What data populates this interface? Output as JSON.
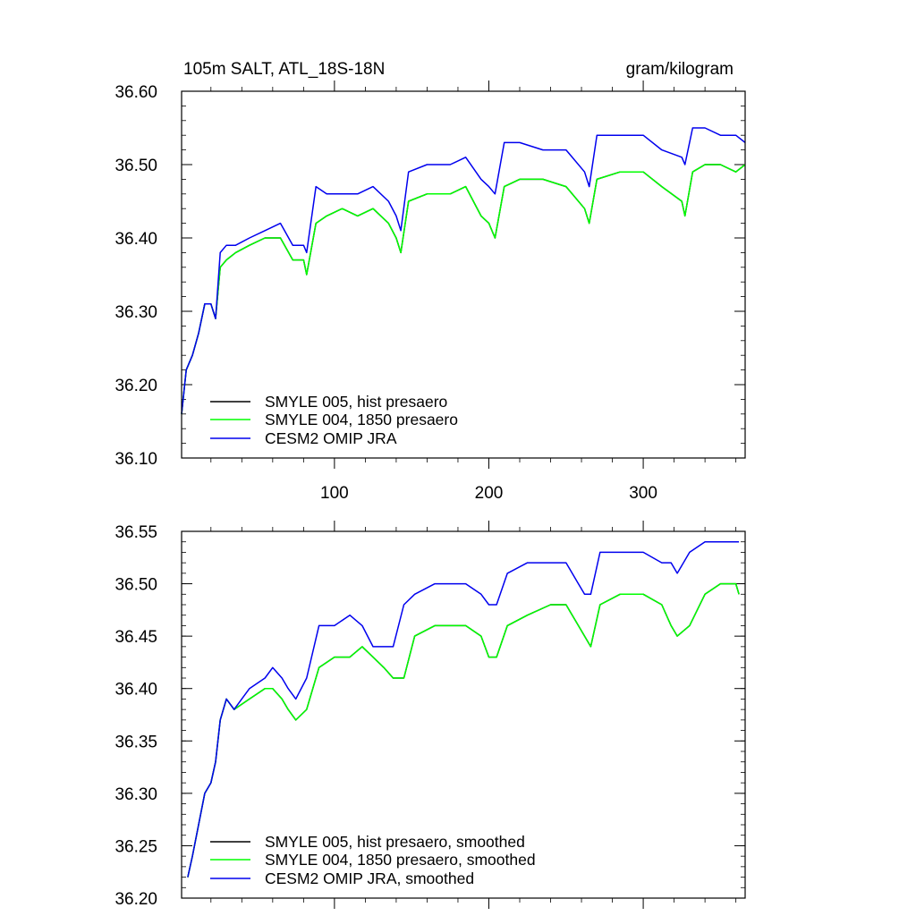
{
  "chart_data": [
    {
      "type": "line",
      "title": "105m SALT, ATL_18S-18N",
      "units": "gram/kilogram",
      "xlabel": "",
      "ylabel": "",
      "xlim": [
        1,
        366
      ],
      "ylim": [
        36.1,
        36.6
      ],
      "x_ticks": [
        100,
        200,
        300
      ],
      "x_tick_labels": [
        "100",
        "200",
        "300"
      ],
      "y_ticks": [
        36.1,
        36.2,
        36.3,
        36.4,
        36.5,
        36.6
      ],
      "y_tick_labels": [
        "36.10",
        "36.20",
        "36.30",
        "36.40",
        "36.50",
        "36.60"
      ],
      "legend_position": "bottom-left",
      "series": [
        {
          "name": "SMYLE 005, hist presaero",
          "color": "#000000",
          "x": [
            1,
            4,
            8,
            12,
            16,
            20,
            23,
            26,
            30,
            36,
            45,
            55,
            65,
            73,
            80,
            82,
            88,
            95,
            105,
            115,
            125,
            135,
            140,
            143,
            148,
            160,
            175,
            185,
            195,
            200,
            204,
            210,
            220,
            235,
            250,
            262,
            265,
            270,
            285,
            300,
            312,
            325,
            327,
            332,
            340,
            350,
            360,
            366
          ],
          "values": [
            36.16,
            36.22,
            36.24,
            36.27,
            36.31,
            36.31,
            36.29,
            36.36,
            36.37,
            36.38,
            36.39,
            36.4,
            36.4,
            36.37,
            36.37,
            36.35,
            36.42,
            36.43,
            36.44,
            36.43,
            36.44,
            36.42,
            36.4,
            36.38,
            36.45,
            36.46,
            36.46,
            36.47,
            36.43,
            36.42,
            36.4,
            36.47,
            36.48,
            36.48,
            36.47,
            36.44,
            36.42,
            36.48,
            36.49,
            36.49,
            36.47,
            36.45,
            36.43,
            36.49,
            36.5,
            36.5,
            36.49,
            36.5
          ]
        },
        {
          "name": "SMYLE 004, 1850 presaero",
          "color": "#00ff00",
          "x": [
            1,
            4,
            8,
            12,
            16,
            20,
            23,
            26,
            30,
            36,
            45,
            55,
            65,
            73,
            80,
            82,
            88,
            95,
            105,
            115,
            125,
            135,
            140,
            143,
            148,
            160,
            175,
            185,
            195,
            200,
            204,
            210,
            220,
            235,
            250,
            262,
            265,
            270,
            285,
            300,
            312,
            325,
            327,
            332,
            340,
            350,
            360,
            366
          ],
          "values": [
            36.16,
            36.22,
            36.24,
            36.27,
            36.31,
            36.31,
            36.29,
            36.36,
            36.37,
            36.38,
            36.39,
            36.4,
            36.4,
            36.37,
            36.37,
            36.35,
            36.42,
            36.43,
            36.44,
            36.43,
            36.44,
            36.42,
            36.4,
            36.38,
            36.45,
            36.46,
            36.46,
            36.47,
            36.43,
            36.42,
            36.4,
            36.47,
            36.48,
            36.48,
            36.47,
            36.44,
            36.42,
            36.48,
            36.49,
            36.49,
            36.47,
            36.45,
            36.43,
            36.49,
            36.5,
            36.5,
            36.49,
            36.5
          ]
        },
        {
          "name": "CESM2 OMIP JRA",
          "color": "#0000ee",
          "x": [
            1,
            4,
            8,
            12,
            16,
            20,
            23,
            26,
            30,
            36,
            45,
            55,
            65,
            73,
            80,
            82,
            88,
            95,
            105,
            115,
            125,
            135,
            140,
            143,
            148,
            160,
            175,
            185,
            195,
            200,
            204,
            210,
            220,
            235,
            250,
            262,
            265,
            270,
            285,
            300,
            312,
            325,
            327,
            332,
            340,
            350,
            360,
            366
          ],
          "values": [
            36.16,
            36.22,
            36.24,
            36.27,
            36.31,
            36.31,
            36.29,
            36.38,
            36.39,
            36.39,
            36.4,
            36.41,
            36.42,
            36.39,
            36.39,
            36.38,
            36.47,
            36.46,
            36.46,
            36.46,
            36.47,
            36.45,
            36.43,
            36.41,
            36.49,
            36.5,
            36.5,
            36.51,
            36.48,
            36.47,
            36.46,
            36.53,
            36.53,
            36.52,
            36.52,
            36.49,
            36.47,
            36.54,
            36.54,
            36.54,
            36.52,
            36.51,
            36.5,
            36.55,
            36.55,
            36.54,
            36.54,
            36.53
          ]
        }
      ]
    },
    {
      "type": "line",
      "title": "",
      "xlabel": "",
      "ylabel": "",
      "xlim": [
        1,
        366
      ],
      "ylim": [
        36.2,
        36.55
      ],
      "x_ticks": [
        100,
        200,
        300
      ],
      "y_ticks": [
        36.2,
        36.25,
        36.3,
        36.35,
        36.4,
        36.45,
        36.5,
        36.55
      ],
      "y_tick_labels": [
        "36.20",
        "36.25",
        "36.30",
        "36.35",
        "36.40",
        "36.45",
        "36.50",
        "36.55"
      ],
      "legend_position": "bottom-left",
      "series": [
        {
          "name": "SMYLE 005, hist presaero, smoothed",
          "color": "#000000",
          "x": [
            5,
            8,
            12,
            16,
            20,
            23,
            26,
            30,
            35,
            45,
            55,
            60,
            66,
            70,
            75,
            82,
            90,
            100,
            110,
            118,
            125,
            132,
            138,
            145,
            152,
            165,
            175,
            185,
            195,
            200,
            205,
            212,
            225,
            240,
            250,
            258,
            262,
            266,
            272,
            285,
            300,
            312,
            318,
            322,
            330,
            340,
            350,
            360,
            362
          ],
          "values": [
            36.22,
            36.24,
            36.27,
            36.3,
            36.31,
            36.33,
            36.37,
            36.39,
            36.38,
            36.39,
            36.4,
            36.4,
            36.39,
            36.38,
            36.37,
            36.38,
            36.42,
            36.43,
            36.43,
            36.44,
            36.43,
            36.42,
            36.41,
            36.41,
            36.45,
            36.46,
            36.46,
            36.46,
            36.45,
            36.43,
            36.43,
            36.46,
            36.47,
            36.48,
            36.48,
            36.46,
            36.45,
            36.44,
            36.48,
            36.49,
            36.49,
            36.48,
            36.46,
            36.45,
            36.46,
            36.49,
            36.5,
            36.5,
            36.49
          ]
        },
        {
          "name": "SMYLE 004, 1850 presaero, smoothed",
          "color": "#00ff00",
          "x": [
            5,
            8,
            12,
            16,
            20,
            23,
            26,
            30,
            35,
            45,
            55,
            60,
            66,
            70,
            75,
            82,
            90,
            100,
            110,
            118,
            125,
            132,
            138,
            145,
            152,
            165,
            175,
            185,
            195,
            200,
            205,
            212,
            225,
            240,
            250,
            258,
            262,
            266,
            272,
            285,
            300,
            312,
            318,
            322,
            330,
            340,
            350,
            360,
            362
          ],
          "values": [
            36.22,
            36.24,
            36.27,
            36.3,
            36.31,
            36.33,
            36.37,
            36.39,
            36.38,
            36.39,
            36.4,
            36.4,
            36.39,
            36.38,
            36.37,
            36.38,
            36.42,
            36.43,
            36.43,
            36.44,
            36.43,
            36.42,
            36.41,
            36.41,
            36.45,
            36.46,
            36.46,
            36.46,
            36.45,
            36.43,
            36.43,
            36.46,
            36.47,
            36.48,
            36.48,
            36.46,
            36.45,
            36.44,
            36.48,
            36.49,
            36.49,
            36.48,
            36.46,
            36.45,
            36.46,
            36.49,
            36.5,
            36.5,
            36.49
          ]
        },
        {
          "name": "CESM2 OMIP JRA, smoothed",
          "color": "#0000ee",
          "x": [
            5,
            8,
            12,
            16,
            20,
            23,
            26,
            30,
            35,
            45,
            55,
            60,
            66,
            70,
            75,
            82,
            90,
            100,
            110,
            118,
            125,
            132,
            138,
            145,
            152,
            165,
            175,
            185,
            195,
            200,
            205,
            212,
            225,
            240,
            250,
            258,
            262,
            266,
            272,
            285,
            300,
            312,
            318,
            322,
            330,
            340,
            350,
            360,
            362
          ],
          "values": [
            36.22,
            36.24,
            36.27,
            36.3,
            36.31,
            36.33,
            36.37,
            36.39,
            36.38,
            36.4,
            36.41,
            36.42,
            36.41,
            36.4,
            36.39,
            36.41,
            36.46,
            36.46,
            36.47,
            36.46,
            36.44,
            36.44,
            36.44,
            36.48,
            36.49,
            36.5,
            36.5,
            36.5,
            36.49,
            36.48,
            36.48,
            36.51,
            36.52,
            36.52,
            36.52,
            36.5,
            36.49,
            36.49,
            36.53,
            36.53,
            36.53,
            36.52,
            36.52,
            36.51,
            36.53,
            36.54,
            36.54,
            36.54,
            36.54
          ]
        }
      ]
    }
  ]
}
